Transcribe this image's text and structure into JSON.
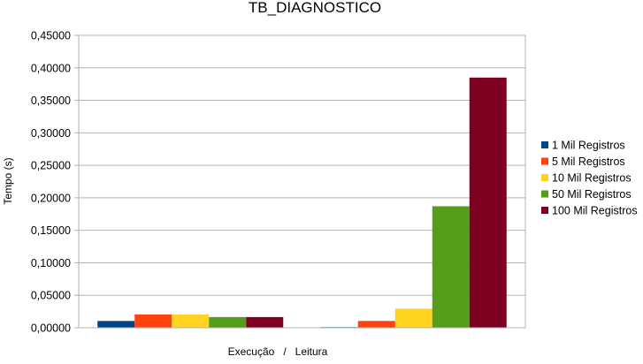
{
  "chart_data": {
    "type": "bar",
    "title": "TB_DIAGNOSTICO",
    "xlabel": "Execução   /   Leitura",
    "ylabel": "Tempo (s)",
    "ylim": [
      0,
      0.45
    ],
    "ytick_step": 0.05,
    "ytick_labels": [
      "0,00000",
      "0,05000",
      "0,10000",
      "0,15000",
      "0,20000",
      "0,25000",
      "0,30000",
      "0,35000",
      "0,40000",
      "0,45000"
    ],
    "grid": true,
    "legend": "right",
    "categories": [
      "",
      ""
    ],
    "series": [
      {
        "name": "1 Mil Registros",
        "color": "#004586",
        "values": [
          0.0105,
          0.001
        ]
      },
      {
        "name": "5 Mil Registros",
        "color": "#ff420e",
        "values": [
          0.0205,
          0.0105
        ]
      },
      {
        "name": "10 Mil Registros",
        "color": "#ffd320",
        "values": [
          0.0205,
          0.0295
        ]
      },
      {
        "name": "50 Mil Registros",
        "color": "#579d1c",
        "values": [
          0.0165,
          0.187
        ]
      },
      {
        "name": "100 Mil Registros",
        "color": "#7e0021",
        "values": [
          0.0165,
          0.385
        ]
      }
    ]
  }
}
